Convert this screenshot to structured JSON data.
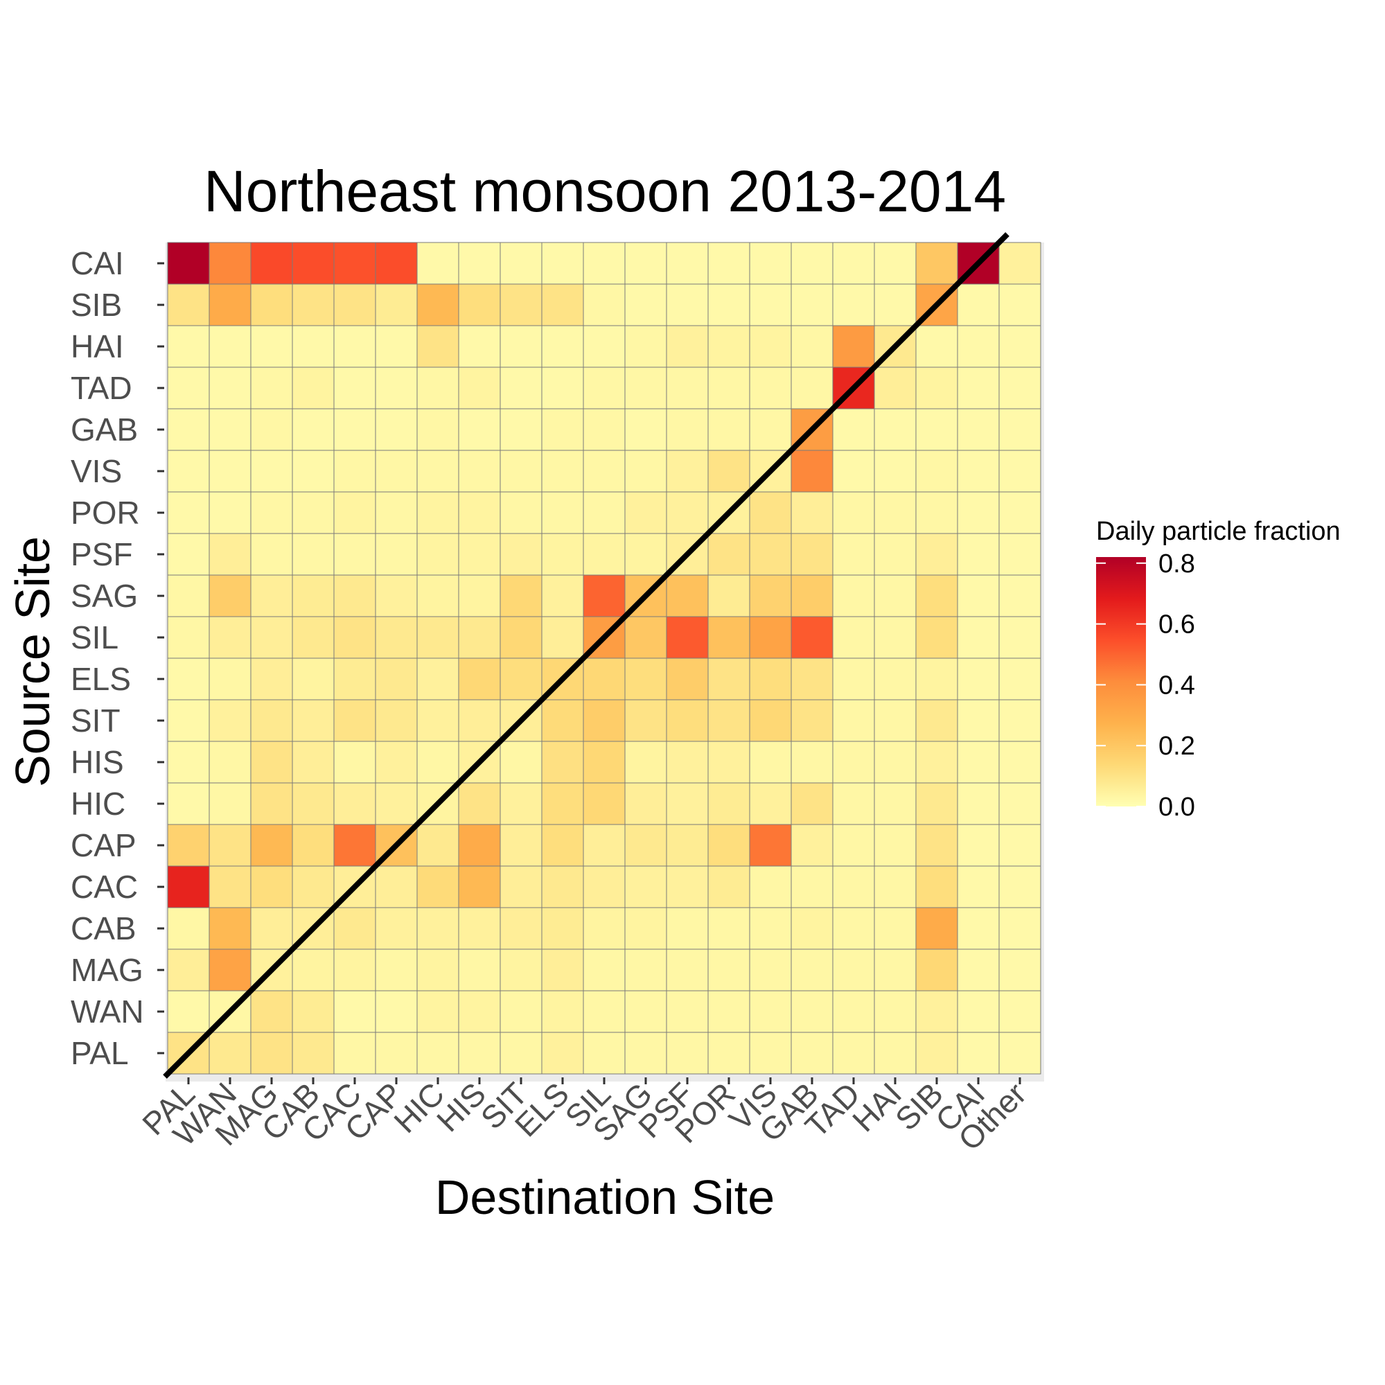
{
  "chart_data": {
    "type": "heatmap",
    "title": "Northeast monsoon 2013-2014",
    "xlabel": "Destination Site",
    "ylabel": "Source Site",
    "x_categories": [
      "PAL",
      "WAN",
      "MAG",
      "CAB",
      "CAC",
      "CAP",
      "HIC",
      "HIS",
      "SIT",
      "ELS",
      "SIL",
      "SAG",
      "PSF",
      "POR",
      "VIS",
      "GAB",
      "TAD",
      "HAI",
      "SIB",
      "CAI",
      "Other"
    ],
    "y_categories": [
      "PAL",
      "WAN",
      "MAG",
      "CAB",
      "CAC",
      "CAP",
      "HIC",
      "HIS",
      "SIT",
      "ELS",
      "SIL",
      "SAG",
      "PSF",
      "POR",
      "VIS",
      "GAB",
      "TAD",
      "HAI",
      "SIB",
      "CAI"
    ],
    "values": [
      [
        0.1,
        0.08,
        0.1,
        0.08,
        0.03,
        0.03,
        0.03,
        0.03,
        0.03,
        0.05,
        0.03,
        0.03,
        0.03,
        0.03,
        0.03,
        0.03,
        0.03,
        0.03,
        0.05,
        0.02,
        0.02
      ],
      [
        0.02,
        0.03,
        0.1,
        0.07,
        0.02,
        0.02,
        0.04,
        0.04,
        0.03,
        0.04,
        0.03,
        0.03,
        0.03,
        0.03,
        0.03,
        0.03,
        0.03,
        0.03,
        0.05,
        0.02,
        0.02
      ],
      [
        0.06,
        0.33,
        0.05,
        0.04,
        0.04,
        0.03,
        0.04,
        0.03,
        0.04,
        0.06,
        0.03,
        0.03,
        0.03,
        0.03,
        0.03,
        0.03,
        0.03,
        0.03,
        0.14,
        0.02,
        0.02
      ],
      [
        0.03,
        0.25,
        0.06,
        0.06,
        0.08,
        0.05,
        0.05,
        0.05,
        0.06,
        0.07,
        0.04,
        0.04,
        0.03,
        0.03,
        0.03,
        0.04,
        0.03,
        0.03,
        0.3,
        0.02,
        0.02
      ],
      [
        0.66,
        0.1,
        0.12,
        0.08,
        0.06,
        0.06,
        0.13,
        0.25,
        0.06,
        0.08,
        0.06,
        0.05,
        0.05,
        0.07,
        0.03,
        0.03,
        0.03,
        0.03,
        0.12,
        0.02,
        0.02
      ],
      [
        0.16,
        0.1,
        0.25,
        0.12,
        0.46,
        0.22,
        0.08,
        0.3,
        0.06,
        0.12,
        0.06,
        0.08,
        0.07,
        0.12,
        0.46,
        0.05,
        0.03,
        0.03,
        0.1,
        0.02,
        0.02
      ],
      [
        0.02,
        0.03,
        0.1,
        0.08,
        0.06,
        0.05,
        0.04,
        0.1,
        0.05,
        0.12,
        0.14,
        0.06,
        0.05,
        0.07,
        0.05,
        0.1,
        0.03,
        0.03,
        0.08,
        0.02,
        0.02
      ],
      [
        0.02,
        0.03,
        0.1,
        0.06,
        0.03,
        0.05,
        0.03,
        0.05,
        0.03,
        0.11,
        0.14,
        0.04,
        0.05,
        0.05,
        0.03,
        0.03,
        0.03,
        0.03,
        0.05,
        0.02,
        0.02
      ],
      [
        0.02,
        0.05,
        0.08,
        0.06,
        0.1,
        0.08,
        0.05,
        0.06,
        0.06,
        0.13,
        0.18,
        0.1,
        0.12,
        0.1,
        0.14,
        0.1,
        0.03,
        0.03,
        0.08,
        0.02,
        0.02
      ],
      [
        0.02,
        0.03,
        0.06,
        0.04,
        0.07,
        0.08,
        0.05,
        0.14,
        0.12,
        0.14,
        0.14,
        0.12,
        0.18,
        0.1,
        0.12,
        0.1,
        0.03,
        0.03,
        0.04,
        0.02,
        0.02
      ],
      [
        0.03,
        0.06,
        0.06,
        0.08,
        0.1,
        0.08,
        0.08,
        0.08,
        0.14,
        0.06,
        0.35,
        0.2,
        0.52,
        0.22,
        0.33,
        0.52,
        0.03,
        0.03,
        0.12,
        0.02,
        0.02
      ],
      [
        0.03,
        0.18,
        0.06,
        0.07,
        0.08,
        0.05,
        0.04,
        0.04,
        0.14,
        0.05,
        0.5,
        0.22,
        0.22,
        0.07,
        0.16,
        0.18,
        0.03,
        0.03,
        0.12,
        0.02,
        0.02
      ],
      [
        0.02,
        0.06,
        0.03,
        0.03,
        0.03,
        0.03,
        0.04,
        0.04,
        0.05,
        0.04,
        0.04,
        0.04,
        0.06,
        0.1,
        0.1,
        0.1,
        0.03,
        0.03,
        0.06,
        0.02,
        0.02
      ],
      [
        0.02,
        0.02,
        0.03,
        0.03,
        0.04,
        0.03,
        0.04,
        0.04,
        0.03,
        0.03,
        0.03,
        0.05,
        0.05,
        0.05,
        0.1,
        0.06,
        0.03,
        0.03,
        0.03,
        0.02,
        0.02
      ],
      [
        0.02,
        0.02,
        0.02,
        0.02,
        0.03,
        0.03,
        0.03,
        0.03,
        0.03,
        0.03,
        0.03,
        0.03,
        0.05,
        0.1,
        0.05,
        0.42,
        0.02,
        0.02,
        0.03,
        0.02,
        0.02
      ],
      [
        0.02,
        0.02,
        0.03,
        0.02,
        0.02,
        0.02,
        0.03,
        0.02,
        0.02,
        0.03,
        0.03,
        0.02,
        0.03,
        0.03,
        0.03,
        0.35,
        0.02,
        0.02,
        0.02,
        0.02,
        0.02
      ],
      [
        0.02,
        0.02,
        0.03,
        0.04,
        0.02,
        0.02,
        0.03,
        0.04,
        0.02,
        0.02,
        0.03,
        0.03,
        0.03,
        0.03,
        0.03,
        0.03,
        0.65,
        0.06,
        0.04,
        0.02,
        0.02
      ],
      [
        0.02,
        0.02,
        0.02,
        0.02,
        0.02,
        0.02,
        0.1,
        0.02,
        0.02,
        0.02,
        0.02,
        0.03,
        0.05,
        0.04,
        0.04,
        0.03,
        0.36,
        0.08,
        0.02,
        0.02,
        0.02
      ],
      [
        0.1,
        0.3,
        0.12,
        0.1,
        0.1,
        0.07,
        0.25,
        0.12,
        0.1,
        0.1,
        0.03,
        0.02,
        0.02,
        0.02,
        0.02,
        0.02,
        0.02,
        0.02,
        0.32,
        0.02,
        0.02
      ],
      [
        0.82,
        0.42,
        0.56,
        0.55,
        0.54,
        0.55,
        0.02,
        0.02,
        0.02,
        0.02,
        0.02,
        0.02,
        0.02,
        0.02,
        0.02,
        0.02,
        0.02,
        0.02,
        0.2,
        0.82,
        0.05
      ]
    ],
    "color_scale": [
      "#FFFFB2",
      "#FED976",
      "#FEB24C",
      "#FD8D3C",
      "#FC4E2A",
      "#E31A1C",
      "#B10026"
    ],
    "value_range": [
      0.0,
      0.82
    ],
    "diagonal_line": true,
    "grid": true,
    "legend": {
      "title": "Daily particle fraction",
      "position": "right",
      "ticks": [
        0.0,
        0.2,
        0.4,
        0.6,
        0.8
      ],
      "tick_labels": [
        "0.0",
        "0.2",
        "0.4",
        "0.6",
        "0.8"
      ]
    }
  }
}
